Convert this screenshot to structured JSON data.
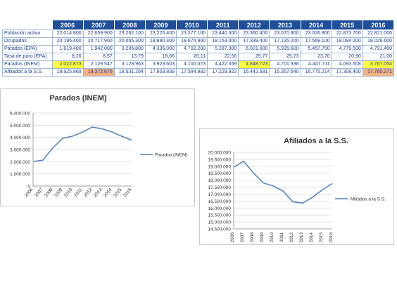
{
  "table": {
    "years": [
      "2006",
      "2007",
      "2008",
      "2009",
      "2010",
      "2011",
      "2012",
      "2013",
      "2014",
      "2015",
      "2016"
    ],
    "rows": [
      {
        "label": "Población activa",
        "values": [
          "22.014.800",
          "22.659.900",
          "23.262.100",
          "23.225.400",
          "23.377.100",
          "23.440.300",
          "23.360.400",
          "23.070.900",
          "23.026.800",
          "22.873.700",
          "22.821.000"
        ]
      },
      {
        "label": "Ocupados",
        "values": [
          "20.195.400",
          "20.717.900",
          "20.055.300",
          "18.890.400",
          "18.674.900",
          "18.153.000",
          "17.339.400",
          "17.135.200",
          "17.569.100",
          "18.094.200",
          "18.029.600"
        ]
      },
      {
        "label": "Parados (EPA)",
        "values": [
          "1.819.400",
          "1.942.000",
          "3.206.800",
          "4.335.000",
          "4.702.200",
          "5.287.300",
          "6.021.000",
          "5.935.600",
          "5.457.700",
          "4.779.500",
          "4.791.400"
        ]
      },
      {
        "label": "Tasa de paro (EPA)",
        "values": [
          "8,26",
          "8,57",
          "13,79",
          "18,66",
          "20,11",
          "22,56",
          "25,77",
          "25,73",
          "23,70",
          "20,90",
          "21,00"
        ]
      },
      {
        "label": "Parados (INEM)",
        "values": [
          "2.022.873",
          "2.129.547",
          "3.128.963",
          "3.923.603",
          "4.100.073",
          "4.422.359",
          "4.848.723",
          "4.701.338",
          "4.447.711",
          "4.093.508",
          "3.767.054"
        ]
      },
      {
        "label": "Afiliados a la S.S.",
        "values": [
          "18.925.869",
          "19.372.675",
          "18.531.264",
          "17.803.839",
          "17.584.982",
          "17.229.922",
          "16.442.681",
          "16.357.640",
          "16.775.214",
          "17.308.400",
          "17.760.271"
        ]
      }
    ],
    "highlights": {
      "yellow": "#ffff3c",
      "orange": "#f4b183",
      "yellow_cells": [
        [
          4,
          0
        ],
        [
          4,
          6
        ],
        [
          4,
          10
        ]
      ],
      "orange_cells": [
        [
          5,
          1
        ],
        [
          5,
          10
        ]
      ]
    }
  },
  "chart_data": [
    {
      "type": "line",
      "title": "Parados (INEM)",
      "x": [
        "2006",
        "2007",
        "2008",
        "2009",
        "2010",
        "2011",
        "2012",
        "2013",
        "2014",
        "2015",
        "2016"
      ],
      "series": [
        {
          "name": "Parados (INEM)",
          "values": [
            2022873,
            2129547,
            3128963,
            3923603,
            4100073,
            4422359,
            4848723,
            4701338,
            4447711,
            4093508,
            3767054
          ]
        }
      ],
      "ylim": [
        0,
        6000000
      ],
      "yticks": [
        "0",
        "1.000.000",
        "2.000.000",
        "3.000.000",
        "4.000.000",
        "5.000.000",
        "6.000.000"
      ],
      "grid": true,
      "legend": "right",
      "color": "#4f81bd"
    },
    {
      "type": "line",
      "title": "Afiliados a la S.S.",
      "x": [
        "2006",
        "2007",
        "2008",
        "2009",
        "2010",
        "2011",
        "2012",
        "2013",
        "2014",
        "2015",
        "2016"
      ],
      "series": [
        {
          "name": "Afiliados a la S.S.",
          "values": [
            18925869,
            19372675,
            18531264,
            17803839,
            17584982,
            17229922,
            16442681,
            16357640,
            16775214,
            17308400,
            17760271
          ]
        }
      ],
      "ylim": [
        14500000,
        20000000
      ],
      "yticks": [
        "14.500.000",
        "15.000.000",
        "15.500.000",
        "16.000.000",
        "16.500.000",
        "17.000.000",
        "17.500.000",
        "18.000.000",
        "18.500.000",
        "19.000.000",
        "19.500.000",
        "20.000.000"
      ],
      "grid": true,
      "legend": "right",
      "color": "#4f81bd"
    }
  ]
}
